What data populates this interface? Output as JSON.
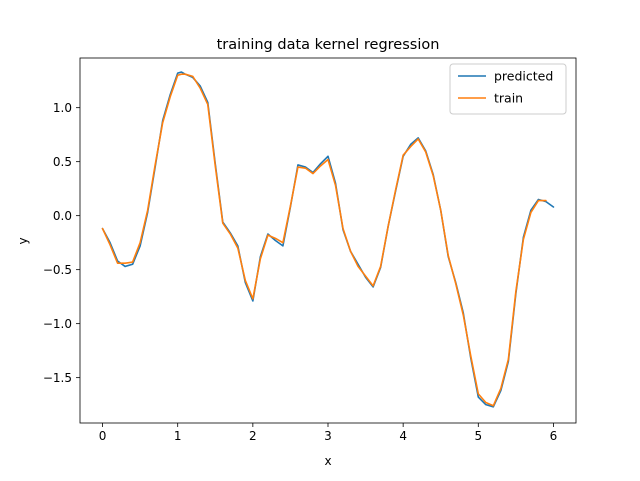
{
  "chart_data": {
    "type": "line",
    "title": "training data kernel regression",
    "xlabel": "x",
    "ylabel": "y",
    "xlim": [
      -0.3,
      6.3
    ],
    "ylim": [
      -1.92,
      1.46
    ],
    "xticks": [
      0,
      1,
      2,
      3,
      4,
      5,
      6
    ],
    "xtick_labels": [
      "0",
      "1",
      "2",
      "3",
      "4",
      "5",
      "6"
    ],
    "yticks": [
      -1.5,
      -1.0,
      -0.5,
      0.0,
      0.5,
      1.0
    ],
    "ytick_labels": [
      "−1.5",
      "−1.0",
      "−0.5",
      "0.0",
      "0.5",
      "1.0"
    ],
    "grid": false,
    "legend_position": "top-right",
    "series": [
      {
        "name": "predicted",
        "color": "#1f77b4",
        "x": [
          0.0,
          0.1,
          0.2,
          0.3,
          0.4,
          0.5,
          0.6,
          0.7,
          0.8,
          0.9,
          1.0,
          1.05,
          1.1,
          1.2,
          1.3,
          1.4,
          1.5,
          1.6,
          1.7,
          1.8,
          1.9,
          2.0,
          2.1,
          2.2,
          2.3,
          2.4,
          2.5,
          2.6,
          2.7,
          2.8,
          2.9,
          3.0,
          3.1,
          3.2,
          3.3,
          3.4,
          3.5,
          3.6,
          3.7,
          3.8,
          3.9,
          4.0,
          4.1,
          4.2,
          4.3,
          4.4,
          4.5,
          4.6,
          4.7,
          4.8,
          4.9,
          5.0,
          5.1,
          5.2,
          5.3,
          5.4,
          5.5,
          5.6,
          5.7,
          5.8,
          5.9,
          6.0
        ],
        "y": [
          -0.12,
          -0.25,
          -0.42,
          -0.47,
          -0.45,
          -0.28,
          0.03,
          0.45,
          0.88,
          1.12,
          1.32,
          1.33,
          1.31,
          1.28,
          1.2,
          1.05,
          0.48,
          -0.06,
          -0.16,
          -0.28,
          -0.62,
          -0.79,
          -0.38,
          -0.17,
          -0.23,
          -0.28,
          0.08,
          0.47,
          0.45,
          0.4,
          0.48,
          0.55,
          0.3,
          -0.13,
          -0.33,
          -0.45,
          -0.57,
          -0.66,
          -0.48,
          -0.1,
          0.23,
          0.55,
          0.66,
          0.72,
          0.6,
          0.38,
          0.05,
          -0.38,
          -0.62,
          -0.9,
          -1.32,
          -1.68,
          -1.75,
          -1.77,
          -1.62,
          -1.35,
          -0.72,
          -0.2,
          0.05,
          0.15,
          0.13,
          0.08
        ]
      },
      {
        "name": "train",
        "color": "#ff7f0e",
        "x": [
          0.0,
          0.1,
          0.2,
          0.3,
          0.4,
          0.5,
          0.6,
          0.7,
          0.8,
          0.9,
          1.0,
          1.05,
          1.1,
          1.2,
          1.3,
          1.4,
          1.5,
          1.6,
          1.7,
          1.8,
          1.9,
          2.0,
          2.1,
          2.2,
          2.3,
          2.4,
          2.5,
          2.6,
          2.7,
          2.8,
          2.9,
          3.0,
          3.1,
          3.2,
          3.3,
          3.4,
          3.5,
          3.6,
          3.7,
          3.8,
          3.9,
          4.0,
          4.1,
          4.2,
          4.3,
          4.4,
          4.5,
          4.6,
          4.7,
          4.8,
          4.9,
          5.0,
          5.1,
          5.2,
          5.3,
          5.4,
          5.5,
          5.6,
          5.7,
          5.8,
          5.9
        ],
        "y": [
          -0.12,
          -0.27,
          -0.44,
          -0.44,
          -0.43,
          -0.25,
          0.05,
          0.47,
          0.86,
          1.1,
          1.3,
          1.31,
          1.31,
          1.29,
          1.18,
          1.03,
          0.46,
          -0.07,
          -0.17,
          -0.3,
          -0.6,
          -0.77,
          -0.4,
          -0.18,
          -0.21,
          -0.25,
          0.09,
          0.45,
          0.44,
          0.39,
          0.46,
          0.52,
          0.28,
          -0.12,
          -0.33,
          -0.47,
          -0.56,
          -0.65,
          -0.47,
          -0.1,
          0.24,
          0.56,
          0.64,
          0.71,
          0.59,
          0.37,
          0.05,
          -0.37,
          -0.63,
          -0.92,
          -1.3,
          -1.65,
          -1.73,
          -1.76,
          -1.6,
          -1.33,
          -0.7,
          -0.22,
          0.03,
          0.14,
          0.14
        ]
      }
    ]
  }
}
